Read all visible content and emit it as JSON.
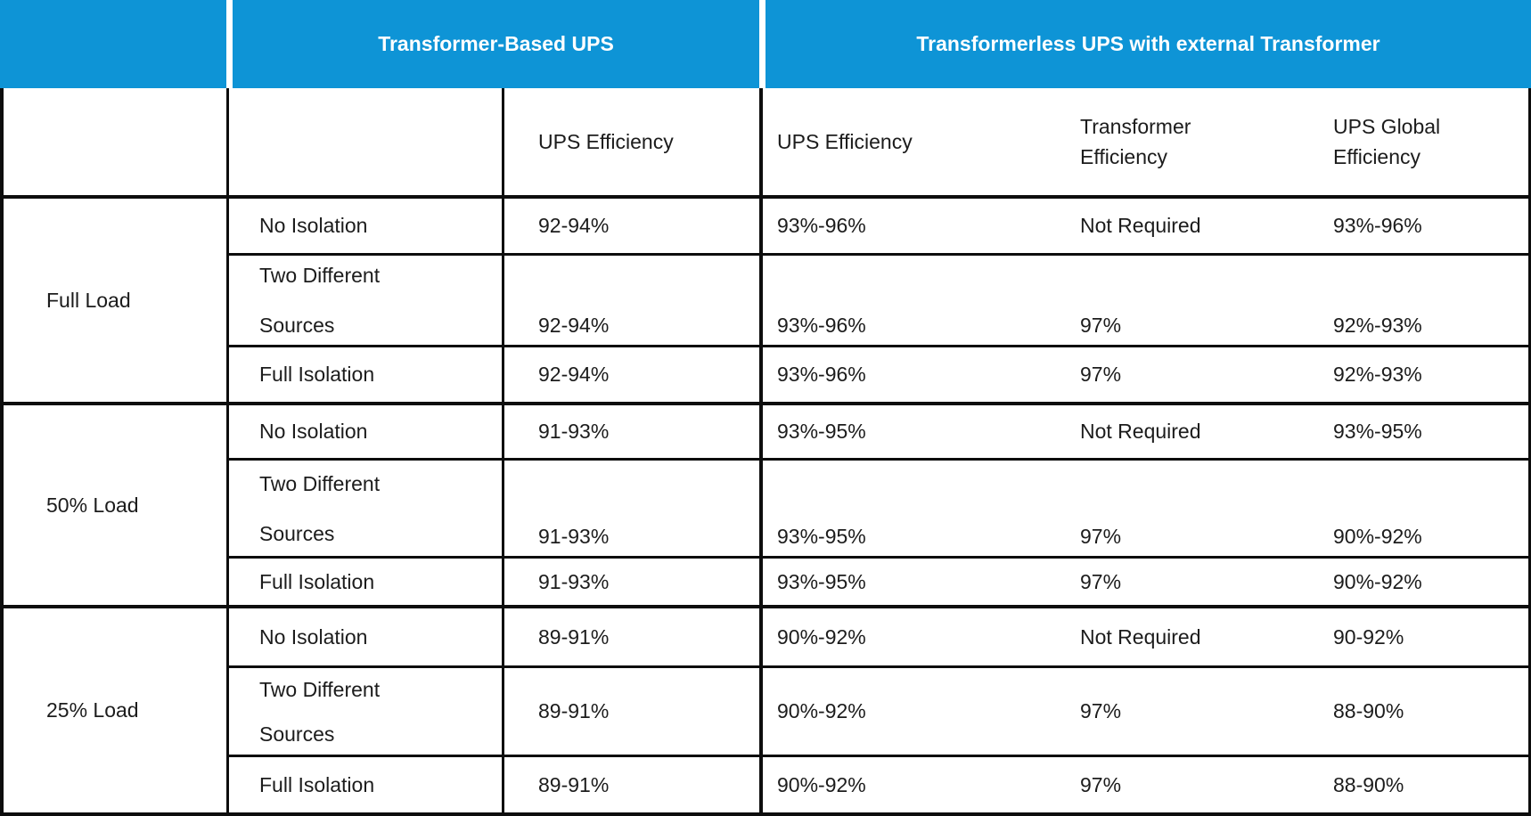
{
  "table": {
    "groups": {
      "transformer_based": "Transformer-Based UPS",
      "transformerless": "Transformerless UPS with external Transformer"
    },
    "columns": {
      "tb_ups_efficiency": "UPS Efficiency",
      "tl_ups_efficiency": "UPS Efficiency",
      "tl_transformer_efficiency": "Transformer\nEfficiency",
      "tl_global_efficiency": "UPS Global\nEfficiency"
    },
    "sections": [
      {
        "load": "Full Load",
        "rows": [
          {
            "config": "No Isolation",
            "tb_ups": "92-94%",
            "tl_ups": "93%-96%",
            "tl_transformer": "Not Required",
            "tl_global": "93%-96%"
          },
          {
            "config": "Two Different\nSources",
            "tb_ups": "92-94%",
            "tl_ups": "93%-96%",
            "tl_transformer": "97%",
            "tl_global": "92%-93%"
          },
          {
            "config": "Full Isolation",
            "tb_ups": "92-94%",
            "tl_ups": "93%-96%",
            "tl_transformer": "97%",
            "tl_global": "92%-93%"
          }
        ]
      },
      {
        "load": "50% Load",
        "rows": [
          {
            "config": "No Isolation",
            "tb_ups": "91-93%",
            "tl_ups": "93%-95%",
            "tl_transformer": "Not Required",
            "tl_global": "93%-95%"
          },
          {
            "config": "Two Different\nSources",
            "tb_ups": "91-93%",
            "tl_ups": "93%-95%",
            "tl_transformer": "97%",
            "tl_global": "90%-92%"
          },
          {
            "config": "Full Isolation",
            "tb_ups": "91-93%",
            "tl_ups": "93%-95%",
            "tl_transformer": "97%",
            "tl_global": "90%-92%"
          }
        ]
      },
      {
        "load": "25% Load",
        "rows": [
          {
            "config": "No Isolation",
            "tb_ups": "89-91%",
            "tl_ups": "90%-92%",
            "tl_transformer": "Not Required",
            "tl_global": "90-92%"
          },
          {
            "config": "Two Different\nSources",
            "tb_ups": "89-91%",
            "tl_ups": "90%-92%",
            "tl_transformer": "97%",
            "tl_global": "88-90%"
          },
          {
            "config": "Full Isolation",
            "tb_ups": "89-91%",
            "tl_ups": "90%-92%",
            "tl_transformer": "97%",
            "tl_global": "88-90%"
          }
        ]
      }
    ],
    "colors": {
      "header_blue": "#0e94d6",
      "border_black": "#0d0d0d",
      "text": "#1c1c1c",
      "header_text": "#ffffff"
    }
  }
}
